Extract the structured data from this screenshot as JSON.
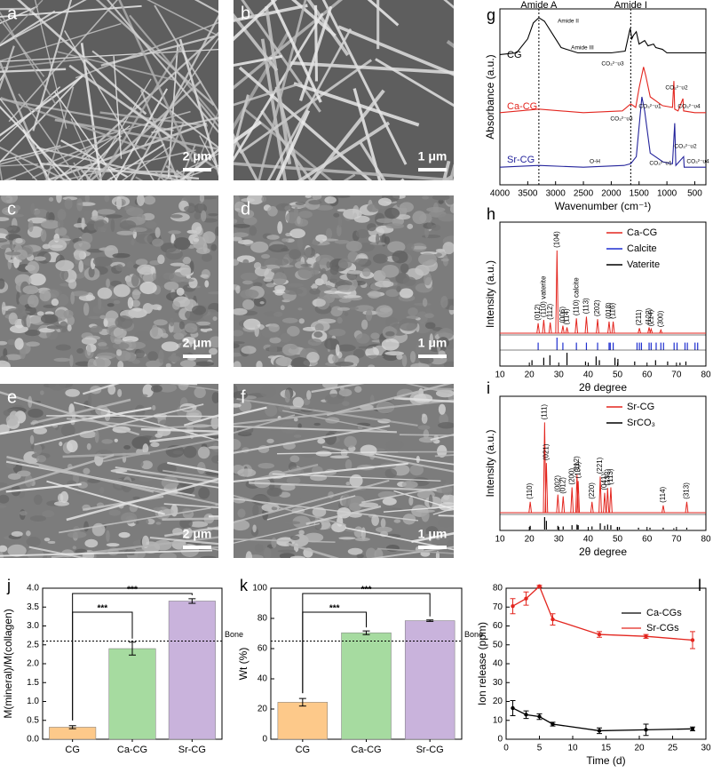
{
  "sem_panels": [
    {
      "label": "a",
      "scale_bar": "2 μm"
    },
    {
      "label": "b",
      "scale_bar": "1 μm"
    },
    {
      "label": "c",
      "scale_bar": "2 μm"
    },
    {
      "label": "d",
      "scale_bar": "1 μm"
    },
    {
      "label": "e",
      "scale_bar": "2 μm"
    },
    {
      "label": "f",
      "scale_bar": "1 μm"
    }
  ],
  "chart_data": [
    {
      "type": "spectrum",
      "panel": "g",
      "x_label": "Wavenumber (cm⁻¹)",
      "y_label": "Absorbance (a.u.)",
      "xlim": [
        4000,
        300
      ],
      "xticks": [
        4000,
        3500,
        3000,
        2500,
        2000,
        1500,
        1000,
        500
      ],
      "ylim": [
        0,
        10
      ],
      "vlines": [
        3300,
        1650
      ],
      "vline_labels": [
        "Amide A",
        "Amide I"
      ],
      "annotations": [
        "Amide II",
        "Amide III",
        "CO₃²⁻υ3",
        "CO₃²⁻υ2",
        "CO₃²⁻υ3",
        "CO₃²⁻υ1",
        "CO₃²⁻υ4",
        "O-H",
        "CO₃²⁻υ1",
        "CO₃²⁻υ2",
        "CO₃²⁻υ4"
      ],
      "series": [
        {
          "name": "CG",
          "color": "#000000",
          "x": [
            4000,
            3700,
            3500,
            3400,
            3300,
            3200,
            3000,
            2900,
            2600,
            2000,
            1750,
            1660,
            1630,
            1600,
            1550,
            1500,
            1450,
            1400,
            1340,
            1240,
            1200,
            1080,
            1000,
            800,
            500,
            300
          ],
          "values": [
            7.4,
            7.5,
            8.3,
            9.2,
            9.5,
            9.3,
            8.3,
            7.8,
            7.5,
            7.5,
            7.6,
            8.9,
            8.3,
            8.5,
            8.7,
            8.0,
            8.1,
            8.2,
            7.9,
            8.0,
            7.8,
            7.7,
            7.5,
            7.5,
            7.5,
            7.5
          ]
        },
        {
          "name": "Ca-CG",
          "color": "#e3261f",
          "x": [
            4000,
            3300,
            2500,
            1800,
            1650,
            1560,
            1500,
            1420,
            1380,
            1300,
            1080,
            900,
            875,
            860,
            800,
            712,
            700,
            500,
            300
          ],
          "values": [
            4.1,
            4.3,
            4.1,
            4.2,
            4.6,
            4.4,
            5.5,
            6.7,
            6.2,
            5.0,
            4.5,
            4.4,
            5.9,
            4.3,
            4.2,
            4.9,
            4.2,
            4.1,
            4.1
          ]
        },
        {
          "name": "Sr-CG",
          "color": "#23239b",
          "x": [
            4000,
            3300,
            2500,
            1770,
            1650,
            1550,
            1450,
            1400,
            1300,
            1070,
            900,
            860,
            840,
            700,
            690,
            500,
            300
          ],
          "values": [
            1.0,
            1.1,
            1.0,
            1.1,
            1.2,
            1.6,
            5.0,
            4.2,
            1.8,
            1.3,
            1.2,
            3.5,
            1.1,
            1.6,
            1.0,
            1.0,
            1.0
          ]
        }
      ]
    },
    {
      "type": "xrd",
      "panel": "h",
      "x_label": "2θ degree",
      "y_label": "Intensity (a.u.)",
      "xlim": [
        10,
        80
      ],
      "xticks": [
        10,
        20,
        30,
        40,
        50,
        60,
        70,
        80
      ],
      "ylim": [
        0,
        130
      ],
      "series": [
        {
          "name": "Ca-CG",
          "color": "#e3261f",
          "kind": "peaks",
          "x": [
            23.0,
            24.9,
            27.1,
            29.4,
            31.4,
            32.8,
            36.0,
            39.4,
            43.2,
            47.1,
            48.5,
            57.4,
            60.7,
            61.4,
            64.7
          ],
          "values": [
            12,
            16,
            13,
            100,
            9,
            7,
            18,
            20,
            17,
            14,
            14,
            6,
            7,
            5,
            4
          ],
          "peak_labels": [
            "(012)",
            "(110) vaterite",
            "(112)",
            "(104)",
            "(006)",
            "(114)",
            "(110) calcite",
            "(113)",
            "(202)",
            "(018)",
            "(116)",
            "(211)",
            "(122)",
            "(214)",
            "(300)"
          ]
        },
        {
          "name": "Calcite",
          "color": "#1f2fd0",
          "kind": "sticks",
          "x": [
            23.0,
            29.4,
            31.4,
            36.0,
            39.4,
            43.2,
            47.1,
            47.5,
            48.5,
            56.6,
            57.4,
            58.1,
            60.7,
            61.4,
            63.1,
            64.7,
            65.6,
            69.2,
            70.2,
            72.9,
            73.7,
            76.3,
            77.2
          ],
          "values": [
            60,
            100,
            60,
            60,
            60,
            60,
            60,
            60,
            60,
            60,
            60,
            60,
            60,
            60,
            60,
            60,
            60,
            60,
            60,
            60,
            60,
            60,
            60
          ]
        },
        {
          "name": "Vaterite",
          "color": "#000000",
          "kind": "sticks",
          "x": [
            20.9,
            24.9,
            27.0,
            32.8,
            39.1,
            42.7,
            43.8,
            49.1,
            50.1,
            55.8,
            62.9,
            67.0,
            71.2,
            73.2
          ],
          "values": [
            40,
            60,
            80,
            100,
            30,
            70,
            40,
            60,
            50,
            30,
            40,
            30,
            20,
            30
          ]
        }
      ]
    },
    {
      "type": "xrd",
      "panel": "i",
      "x_label": "2θ degree",
      "y_label": "Intensity (a.u.)",
      "xlim": [
        10,
        80
      ],
      "xticks": [
        10,
        20,
        30,
        40,
        50,
        60,
        70,
        80
      ],
      "ylim": [
        0,
        125
      ],
      "series": [
        {
          "name": "Sr-CG",
          "color": "#e3261f",
          "kind": "peaks",
          "x": [
            20.3,
            25.2,
            25.8,
            29.7,
            31.5,
            34.5,
            36.2,
            36.6,
            41.3,
            44.1,
            45.6,
            46.6,
            47.7,
            65.5,
            73.5
          ],
          "values": [
            12,
            100,
            55,
            20,
            18,
            28,
            42,
            35,
            12,
            40,
            22,
            27,
            28,
            8,
            12
          ],
          "peak_labels": [
            "(110)",
            "(111)",
            "(021)",
            "(002)",
            "(012)",
            "(200)",
            "(112)",
            "(130)",
            "(220)",
            "(221)",
            "(041)",
            "(132)",
            "(113)",
            "(114)",
            "(313)"
          ]
        },
        {
          "name": "SrCO₃",
          "color": "#000000",
          "kind": "sticks",
          "x": [
            20.3,
            25.2,
            25.8,
            29.7,
            31.5,
            34.5,
            36.2,
            36.6,
            41.3,
            44.1,
            45.6,
            46.6,
            47.7,
            49.9,
            50.6,
            57.1,
            61.0,
            65.5,
            69.1,
            73.5
          ],
          "values": [
            30,
            100,
            70,
            30,
            25,
            35,
            40,
            35,
            25,
            50,
            30,
            40,
            35,
            20,
            20,
            15,
            15,
            15,
            10,
            15
          ]
        }
      ]
    },
    {
      "type": "bar",
      "panel": "j",
      "y_label": "M(mineral)/M(collagen)",
      "categories": [
        "CG",
        "Ca-CG",
        "Sr-CG"
      ],
      "values": [
        0.32,
        2.4,
        3.66
      ],
      "errors": [
        0.04,
        0.17,
        0.06
      ],
      "colors": [
        "#fdc98a",
        "#a6dba0",
        "#c9b3dc"
      ],
      "ylim": [
        0,
        4.0
      ],
      "yticks": [
        {
          "value": 0,
          "label": "0.0"
        },
        {
          "value": 0.5,
          "label": "0.5"
        },
        {
          "value": 1,
          "label": "1.0"
        },
        {
          "value": 1.5,
          "label": "1.5"
        },
        {
          "value": 2,
          "label": "2.0"
        },
        {
          "value": 2.5,
          "label": "2.5"
        },
        {
          "value": 3,
          "label": "3.0"
        },
        {
          "value": 3.5,
          "label": "3.5"
        },
        {
          "value": 4,
          "label": "4.0"
        }
      ],
      "reference_line": 2.6,
      "reference_label": "Bone",
      "significance": [
        "***",
        "***"
      ]
    },
    {
      "type": "bar",
      "panel": "k",
      "y_label": "Wt (%)",
      "categories": [
        "CG",
        "Ca-CG",
        "Sr-CG"
      ],
      "values": [
        24.5,
        70.5,
        78.5
      ],
      "errors": [
        2.5,
        1.2,
        0.5
      ],
      "colors": [
        "#fdc98a",
        "#a6dba0",
        "#c9b3dc"
      ],
      "ylim": [
        0,
        100
      ],
      "yticks": [
        0,
        20,
        40,
        60,
        80,
        100
      ],
      "reference_line": 65,
      "reference_label": "Bone",
      "significance": [
        "***",
        "***"
      ]
    },
    {
      "type": "line",
      "panel": "l",
      "x_label": "Time (d)",
      "y_label": "Ion release (ppm)",
      "xlim": [
        0,
        30
      ],
      "xticks": [
        0,
        5,
        10,
        15,
        20,
        25,
        30
      ],
      "ylim": [
        0,
        80
      ],
      "yticks": [
        0,
        10,
        20,
        30,
        40,
        50,
        60,
        70,
        80
      ],
      "legend": "top-right",
      "series": [
        {
          "name": "Ca-CGs",
          "color": "#000000",
          "x": [
            1,
            3,
            5,
            7,
            14,
            21,
            28
          ],
          "values": [
            16.5,
            13,
            12,
            8,
            4.5,
            5,
            5.5
          ],
          "errors": [
            4,
            2,
            1.5,
            1,
            1.5,
            3,
            1
          ]
        },
        {
          "name": "Sr-CGs",
          "color": "#e3261f",
          "x": [
            1,
            3,
            5,
            7,
            14,
            21,
            28
          ],
          "values": [
            70.5,
            74.5,
            81,
            63.5,
            55.5,
            54.5,
            52.5
          ],
          "errors": [
            4,
            3.5,
            0.5,
            3,
            1.5,
            1,
            4.5
          ]
        }
      ]
    }
  ]
}
